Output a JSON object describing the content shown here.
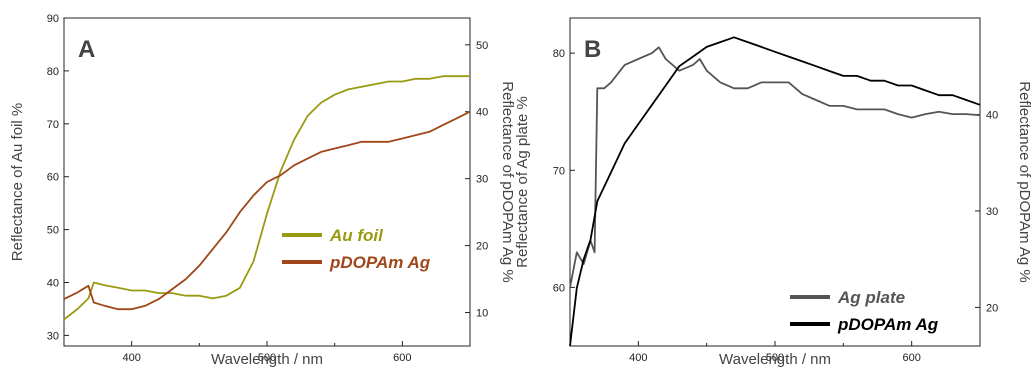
{
  "chart_data": [
    {
      "type": "line",
      "panel_label": "A",
      "xlabel": "Wavelength / nm",
      "ylabel_left": "Reflectance of Au foil %",
      "ylabel_right": "Reflectance of pDOPAm Ag %",
      "xlim": [
        350,
        650
      ],
      "ylim_left": [
        28,
        90
      ],
      "ylim_right": [
        5,
        54
      ],
      "xticks": [
        400,
        500,
        600
      ],
      "yticks_left": [
        30,
        40,
        50,
        60,
        70,
        80,
        90
      ],
      "yticks_right": [
        10,
        20,
        30,
        40,
        50
      ],
      "legend": [
        {
          "label": "Au foil",
          "color": "#9a9a12"
        },
        {
          "label": "pDOPAm Ag",
          "color": "#a0461a"
        }
      ],
      "series": [
        {
          "name": "Au foil",
          "axis": "left",
          "color": "#9a9a12",
          "x": [
            350,
            360,
            368,
            372,
            380,
            390,
            400,
            410,
            420,
            430,
            440,
            450,
            460,
            470,
            480,
            490,
            500,
            510,
            520,
            530,
            540,
            550,
            560,
            570,
            580,
            590,
            600,
            610,
            620,
            630,
            640,
            650
          ],
          "y": [
            33,
            35,
            37,
            40,
            39.5,
            39,
            38.5,
            38.5,
            38,
            38,
            37.5,
            37.5,
            37,
            37.5,
            39,
            44,
            53,
            61,
            67,
            71.5,
            74,
            75.5,
            76.5,
            77,
            77.5,
            78,
            78,
            78.5,
            78.5,
            79,
            79,
            79
          ]
        },
        {
          "name": "pDOPAm Ag",
          "axis": "right",
          "color": "#a0461a",
          "x": [
            350,
            360,
            368,
            372,
            380,
            390,
            400,
            410,
            420,
            430,
            440,
            450,
            460,
            470,
            480,
            490,
            500,
            510,
            520,
            530,
            540,
            550,
            560,
            570,
            580,
            590,
            600,
            610,
            620,
            630,
            640,
            650
          ],
          "y": [
            12,
            13,
            14,
            11.5,
            11,
            10.5,
            10.5,
            11,
            12,
            13.5,
            15,
            17,
            19.5,
            22,
            25,
            27.5,
            29.5,
            30.5,
            32,
            33,
            34,
            34.5,
            35,
            35.5,
            35.5,
            35.5,
            36,
            36.5,
            37,
            38,
            39,
            40
          ]
        }
      ]
    },
    {
      "type": "line",
      "panel_label": "B",
      "xlabel": "Wavelength / nm",
      "ylabel_left": "Reflectance of Ag plate %",
      "ylabel_right": "Reflectance of pDOPAm Ag %",
      "xlim": [
        350,
        650
      ],
      "ylim_left": [
        55,
        83
      ],
      "ylim_right": [
        16,
        50
      ],
      "xticks": [
        400,
        500,
        600
      ],
      "yticks_left": [
        60,
        70,
        80
      ],
      "yticks_right": [
        20,
        30,
        40
      ],
      "legend": [
        {
          "label": "Ag plate",
          "color": "#555555"
        },
        {
          "label": "pDOPAm Ag",
          "color": "#000000"
        }
      ],
      "series": [
        {
          "name": "Ag plate",
          "axis": "left",
          "color": "#555555",
          "x": [
            350,
            355,
            360,
            365,
            368,
            370,
            375,
            380,
            390,
            400,
            410,
            415,
            420,
            430,
            440,
            445,
            450,
            460,
            470,
            480,
            490,
            500,
            505,
            510,
            520,
            530,
            540,
            550,
            560,
            570,
            580,
            590,
            600,
            610,
            620,
            630,
            640,
            650
          ],
          "y": [
            60,
            63,
            62,
            64,
            63,
            77,
            77,
            77.5,
            79,
            79.5,
            80,
            80.5,
            79.5,
            78.5,
            79,
            79.5,
            78.5,
            77.5,
            77,
            77,
            77.5,
            77.5,
            77.5,
            77.5,
            76.5,
            76,
            75.5,
            75.5,
            75.2,
            75.2,
            75.2,
            74.8,
            74.5,
            74.8,
            75,
            74.8,
            74.8,
            74.7
          ]
        },
        {
          "name": "pDOPAm Ag",
          "axis": "right",
          "color": "#000000",
          "x": [
            350,
            355,
            360,
            365,
            370,
            380,
            390,
            400,
            410,
            420,
            430,
            440,
            450,
            460,
            470,
            480,
            490,
            500,
            510,
            520,
            530,
            540,
            550,
            560,
            570,
            580,
            590,
            600,
            610,
            620,
            630,
            640,
            650
          ],
          "y": [
            16,
            22,
            25,
            27,
            31,
            34,
            37,
            39,
            41,
            43,
            45,
            46,
            47,
            47.5,
            48,
            47.5,
            47,
            46.5,
            46,
            45.5,
            45,
            44.5,
            44,
            44,
            43.5,
            43.5,
            43,
            43,
            42.5,
            42,
            42,
            41.5,
            41
          ]
        }
      ]
    }
  ]
}
